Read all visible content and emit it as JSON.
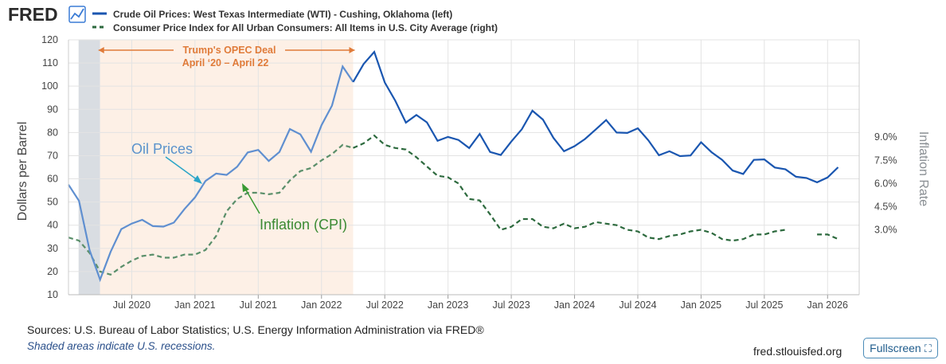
{
  "brand": {
    "logo_text": "FRED",
    "logo_icon": "line-chart-icon"
  },
  "colors": {
    "oil": "#1a56b0",
    "oil_annotated": "#5f8fd0",
    "cpi": "#2d6a3e",
    "cpi_annotated": "#5a8f6a",
    "deal_text": "#e07b39",
    "deal_shade": "#fdf0e6",
    "recession_shade": "#d9dde2",
    "oil_label": "#5b93cc",
    "oil_arrow": "#2aa5c8",
    "cpi_label": "#3a8a33",
    "cpi_arrow": "#3a9a33"
  },
  "chart_data": {
    "type": "line",
    "legend": [
      "Crude Oil Prices: West Texas Intermediate (WTI) - Cushing, Oklahoma (left)",
      "Consumer Price Index for All Urban Consumers: All Items in U.S. City Average (right)"
    ],
    "ylabel_left": "Dollars per Barrel",
    "ylabel_right": "Inflation Rate",
    "ylim_left": [
      10,
      120
    ],
    "yticks_left": [
      "10",
      "20",
      "30",
      "40",
      "50",
      "60",
      "70",
      "80",
      "90",
      "100",
      "110",
      "120"
    ],
    "yticks_right": [
      "3.0%",
      "4.5%",
      "6.0%",
      "7.5%",
      "9.0%"
    ],
    "xticks": [
      "Jul 2020",
      "Jan 2021",
      "Jul 2021",
      "Jan 2022",
      "Jul 2022",
      "Jan 2023",
      "Jul 2023",
      "Jan 2024",
      "Jul 2024",
      "Jan 2025",
      "Jul 2025",
      "Jan 2026"
    ],
    "annotations": {
      "deal_title": "Trump's OPEC Deal",
      "deal_range": "April ‘20 – April 22",
      "oil_label": "Oil Prices",
      "cpi_label": "Inflation (CPI)"
    },
    "series": [
      {
        "name": "Crude Oil Prices: West Texas Intermediate (WTI) - Cushing, Oklahoma (left)",
        "units": "dollars per barrel",
        "x": [
          2020.0,
          2020.083,
          2020.167,
          2020.25,
          2020.333,
          2020.417,
          2020.5,
          2020.583,
          2020.667,
          2020.75,
          2020.833,
          2020.917,
          2021.0,
          2021.083,
          2021.167,
          2021.25,
          2021.333,
          2021.417,
          2021.5,
          2021.583,
          2021.667,
          2021.75,
          2021.833,
          2021.917,
          2022.0,
          2022.083,
          2022.167,
          2022.25,
          2022.333,
          2022.417,
          2022.5,
          2022.583,
          2022.667,
          2022.75,
          2022.833,
          2022.917,
          2023.0,
          2023.083,
          2023.167,
          2023.25,
          2023.333,
          2023.417,
          2023.5,
          2023.583,
          2023.667,
          2023.75,
          2023.833,
          2023.917,
          2024.0,
          2024.083,
          2024.167,
          2024.25,
          2024.333,
          2024.417,
          2024.5,
          2024.583,
          2024.667,
          2024.75,
          2024.833,
          2024.917,
          2025.0,
          2025.083,
          2025.167,
          2025.25,
          2025.333,
          2025.417,
          2025.5,
          2025.583,
          2025.667,
          2025.75,
          2025.833,
          2025.917,
          2026.0,
          2026.083
        ],
        "values": [
          57.5,
          50.5,
          29.2,
          16.5,
          28.5,
          38.3,
          40.7,
          42.3,
          39.6,
          39.4,
          41.1,
          47.0,
          52.0,
          59.1,
          62.3,
          61.7,
          65.2,
          71.4,
          72.5,
          67.7,
          71.6,
          81.5,
          79.2,
          71.7,
          83.2,
          91.6,
          108.5,
          101.8,
          109.6,
          114.8,
          101.6,
          93.7,
          84.3,
          87.6,
          84.4,
          76.4,
          78.1,
          76.8,
          73.3,
          79.4,
          71.6,
          70.3,
          76.1,
          81.4,
          89.4,
          85.6,
          77.7,
          71.9,
          74.1,
          77.2,
          81.3,
          85.4,
          80.0,
          79.8,
          81.8,
          76.7,
          70.2,
          71.9,
          69.8,
          70.1,
          75.8,
          71.5,
          68.2,
          63.6,
          62.1,
          68.2,
          68.4,
          64.9,
          64.1,
          60.9,
          60.4,
          58.5,
          60.6,
          65.0
        ]
      },
      {
        "name": "Consumer Price Index for All Urban Consumers: All Items in U.S. City Average (right)",
        "units": "percent",
        "x": [
          2020.0,
          2020.083,
          2020.167,
          2020.25,
          2020.333,
          2020.417,
          2020.5,
          2020.583,
          2020.667,
          2020.75,
          2020.833,
          2020.917,
          2021.0,
          2021.083,
          2021.167,
          2021.25,
          2021.333,
          2021.417,
          2021.5,
          2021.583,
          2021.667,
          2021.75,
          2021.833,
          2021.917,
          2022.0,
          2022.083,
          2022.167,
          2022.25,
          2022.333,
          2022.417,
          2022.5,
          2022.583,
          2022.667,
          2022.75,
          2022.833,
          2022.917,
          2023.0,
          2023.083,
          2023.167,
          2023.25,
          2023.333,
          2023.417,
          2023.5,
          2023.583,
          2023.667,
          2023.75,
          2023.833,
          2023.917,
          2024.0,
          2024.083,
          2024.167,
          2024.25,
          2024.333,
          2024.417,
          2024.5,
          2024.583,
          2024.667,
          2024.75,
          2024.833,
          2024.917,
          2025.0,
          2025.083,
          2025.167,
          2025.25,
          2025.333,
          2025.417,
          2025.5,
          2025.583,
          2025.667,
          2025.75,
          2025.833,
          2025.917,
          2026.0,
          2026.083
        ],
        "values": [
          2.5,
          2.3,
          1.5,
          0.3,
          0.1,
          0.6,
          1.0,
          1.3,
          1.4,
          1.2,
          1.2,
          1.4,
          1.4,
          1.7,
          2.6,
          4.2,
          5.0,
          5.4,
          5.4,
          5.3,
          5.4,
          6.2,
          6.8,
          7.0,
          7.5,
          7.9,
          8.5,
          8.3,
          8.6,
          9.1,
          8.5,
          8.3,
          8.2,
          7.7,
          7.1,
          6.5,
          6.4,
          6.0,
          5.0,
          4.9,
          4.0,
          3.0,
          3.2,
          3.7,
          3.7,
          3.2,
          3.1,
          3.4,
          3.1,
          3.2,
          3.5,
          3.4,
          3.3,
          3.0,
          2.9,
          2.5,
          2.4,
          2.6,
          2.7,
          2.9,
          3.0,
          2.8,
          2.4,
          2.3,
          2.4,
          2.7,
          2.7,
          2.9,
          3.0,
          null,
          null,
          2.7,
          2.7,
          2.4
        ]
      }
    ]
  },
  "footer": {
    "sources": "Sources: U.S. Bureau of Labor Statistics; U.S. Energy Information Administration via FRED®",
    "recession_note": "Shaded areas indicate U.S. recessions.",
    "site": "fred.stlouisfed.org",
    "fullscreen_label": "Fullscreen"
  }
}
